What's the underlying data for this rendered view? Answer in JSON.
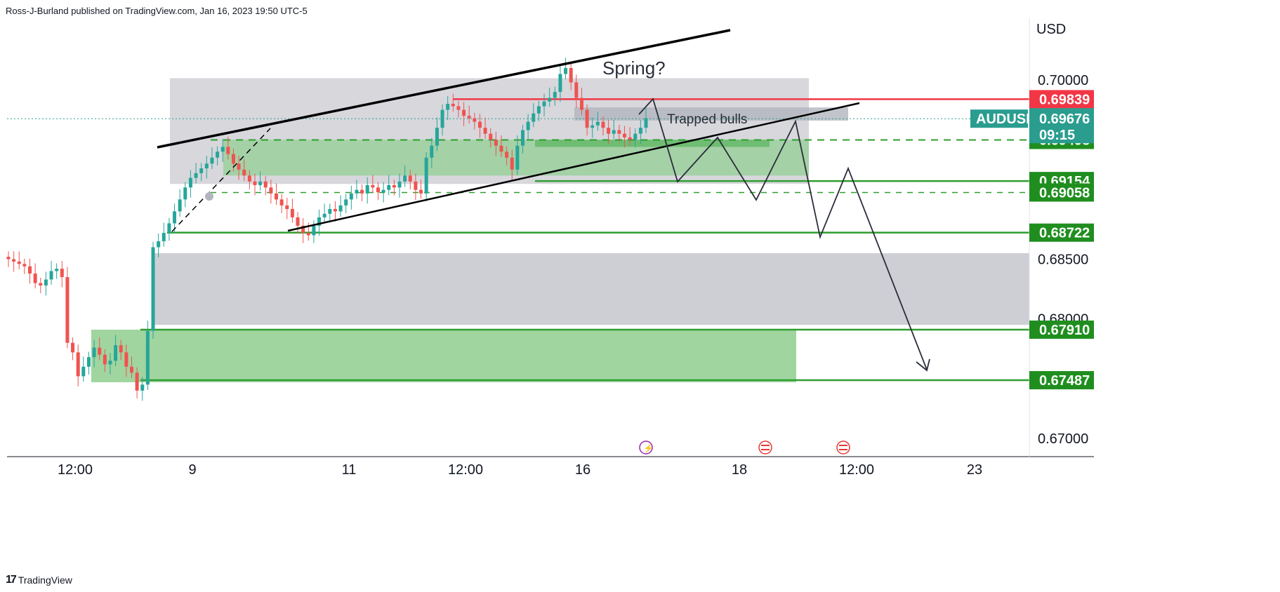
{
  "publisher_line": "Ross-J-Burland published on TradingView.com, Jan 16, 2023 19:50 UTC-5",
  "footer": {
    "brand": "TradingView",
    "logo_icon": "tradingview-logo-icon"
  },
  "colors": {
    "bull": "#26a69a",
    "bear": "#ef5350",
    "green_line": "#2e9e2e",
    "green_tag": "#1f8e1f",
    "red_tag": "#f23645",
    "teal_tag": "#2a9d8f",
    "grey_zone": "#c9cad0",
    "green_zone": "#8fce8f"
  },
  "chart_data": {
    "type": "candlestick",
    "symbol": "AUDUSD",
    "currency": "USD",
    "current_price": "0.69676",
    "countdown": "09:15",
    "ylim": [
      0.666,
      0.705
    ],
    "price_ticks": [
      "0.70000",
      "0.68500",
      "0.68000",
      "0.67000"
    ],
    "price_tick_values": [
      0.7,
      0.685,
      0.68,
      0.67
    ],
    "x_ticks": [
      {
        "label": "12:00",
        "t": 11
      },
      {
        "label": "9",
        "t": 31
      },
      {
        "label": "11",
        "t": 58
      },
      {
        "label": "12:00",
        "t": 78
      },
      {
        "label": "16",
        "t": 98
      },
      {
        "label": "18",
        "t": 125
      },
      {
        "label": "12:00",
        "t": 145
      },
      {
        "label": "23",
        "t": 165
      }
    ],
    "tags": [
      {
        "value": "0.69839",
        "price": 0.69839,
        "color": "red"
      },
      {
        "value": "0.69498",
        "price": 0.69498,
        "color": "green"
      },
      {
        "value": "0.69154",
        "price": 0.69154,
        "color": "green"
      },
      {
        "value": "0.69058",
        "price": 0.69058,
        "color": "green"
      },
      {
        "value": "0.68722",
        "price": 0.68722,
        "color": "green"
      },
      {
        "value": "0.67910",
        "price": 0.6791,
        "color": "green"
      },
      {
        "value": "0.67487",
        "price": 0.67487,
        "color": "green"
      }
    ],
    "annotations": {
      "spring": "Spring?",
      "trapped": "Trapped bulls"
    },
    "close_path": [
      0.685,
      0.6848,
      0.6846,
      0.6844,
      0.6838,
      0.683,
      0.6828,
      0.6833,
      0.684,
      0.6842,
      0.6835,
      0.678,
      0.6772,
      0.6752,
      0.676,
      0.6768,
      0.6776,
      0.677,
      0.6762,
      0.6765,
      0.6778,
      0.6772,
      0.676,
      0.6755,
      0.674,
      0.6745,
      0.679,
      0.686,
      0.6865,
      0.6872,
      0.688,
      0.689,
      0.69,
      0.691,
      0.6918,
      0.6922,
      0.6926,
      0.693,
      0.6935,
      0.694,
      0.6944,
      0.6938,
      0.693,
      0.6925,
      0.692,
      0.6915,
      0.6912,
      0.6915,
      0.691,
      0.6905,
      0.69,
      0.6895,
      0.6892,
      0.6885,
      0.6878,
      0.6872,
      0.687,
      0.6878,
      0.6885,
      0.6888,
      0.6892,
      0.689,
      0.6895,
      0.69,
      0.6905,
      0.6908,
      0.6905,
      0.6912,
      0.691,
      0.6906,
      0.6908,
      0.6912,
      0.691,
      0.6915,
      0.692,
      0.6915,
      0.6908,
      0.6905,
      0.6935,
      0.6945,
      0.696,
      0.6975,
      0.698,
      0.6978,
      0.6975,
      0.697,
      0.6968,
      0.6965,
      0.696,
      0.6955,
      0.695,
      0.6945,
      0.694,
      0.6935,
      0.6925,
      0.6945,
      0.6958,
      0.6965,
      0.6972,
      0.6978,
      0.6982,
      0.6985,
      0.699,
      0.7005,
      0.701,
      0.6998,
      0.6985,
      0.6975,
      0.696,
      0.6962,
      0.6965,
      0.696,
      0.6955,
      0.6958,
      0.6955,
      0.6952,
      0.695,
      0.6955,
      0.696,
      0.6968
    ],
    "projection": [
      [
        0.0,
        0.6983
      ],
      [
        7,
        0.6922
      ],
      [
        15,
        0.6953
      ],
      [
        22,
        0.6908
      ],
      [
        29,
        0.696
      ],
      [
        36,
        0.688
      ],
      [
        42,
        0.6938
      ],
      [
        60,
        0.6755
      ]
    ]
  }
}
